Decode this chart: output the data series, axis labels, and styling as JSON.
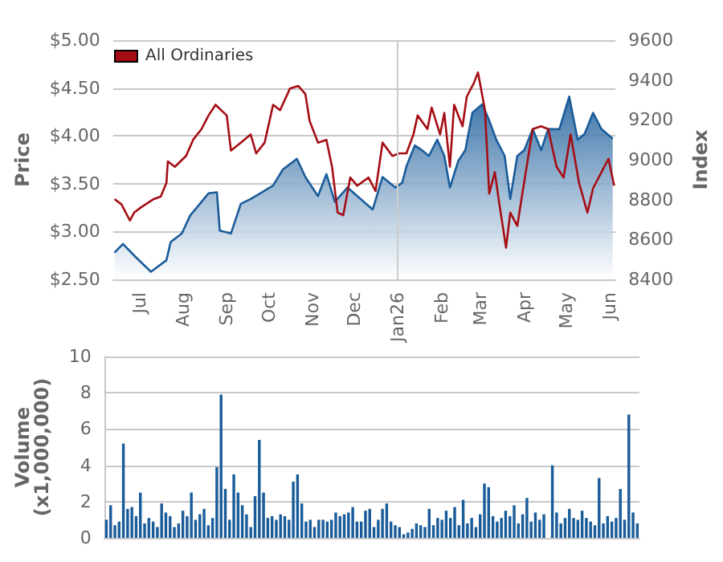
{
  "chart_data": [
    {
      "type": "area",
      "ylabel": "Price",
      "y2label": "Index",
      "legend": "top left",
      "grid": "y",
      "marker": "none",
      "xlim": [
        "2025-06-12",
        "2026-06-05"
      ],
      "xticks": [
        {
          "value": "2025-07-01",
          "label": "Jul"
        },
        {
          "value": "2025-08-01",
          "label": "Aug"
        },
        {
          "value": "2025-09-01",
          "label": "Sep"
        },
        {
          "value": "2025-10-01",
          "label": "Oct"
        },
        {
          "value": "2025-11-01",
          "label": "Nov"
        },
        {
          "value": "2025-12-01",
          "label": "Dec"
        },
        {
          "value": "2026-01-01",
          "label": "Jan26"
        },
        {
          "value": "2026-02-01",
          "label": "Feb"
        },
        {
          "value": "2026-03-01",
          "label": "Mar"
        },
        {
          "value": "2026-04-01",
          "label": "Apr"
        },
        {
          "value": "2026-05-01",
          "label": "May"
        },
        {
          "value": "2026-06-01",
          "label": "Jun"
        }
      ],
      "ylim": [
        2.5,
        5
      ],
      "yticks": [
        {
          "value": 2.5,
          "label": "$2.50"
        },
        {
          "value": 3,
          "label": "$3.00"
        },
        {
          "value": 3.5,
          "label": "$3.50"
        },
        {
          "value": 4,
          "label": "$4.00"
        },
        {
          "value": 4.5,
          "label": "$4.50"
        },
        {
          "value": 5,
          "label": "$5.00"
        }
      ],
      "y2lim": [
        8400,
        9600
      ],
      "y2ticks": [
        8400,
        8600,
        8800,
        9000,
        9200,
        9400,
        9600
      ],
      "ref_lines": [
        {
          "axis": "x",
          "value": "2026-01-01",
          "color": "#cccccc"
        }
      ],
      "series": [
        {
          "type": "area",
          "color": "#1a5c9a",
          "x": [
            "2025-06-13",
            "2025-06-19",
            "2025-06-29",
            "2025-07-09",
            "2025-07-20",
            "2025-07-23",
            "2025-07-31",
            "2025-08-06",
            "2025-08-14",
            "2025-08-19",
            "2025-08-25",
            "2025-08-27",
            "2025-09-04",
            "2025-09-11",
            "2025-09-18",
            "2025-09-25",
            "2025-10-04",
            "2025-10-11",
            "2025-10-21",
            "2025-10-27",
            "2025-11-05",
            "2025-11-11",
            "2025-11-17",
            "2025-11-26",
            "2025-12-03",
            "2025-12-14",
            "2025-12-21",
            "2025-12-30",
            "2026-01-04",
            "2026-01-07",
            "2026-01-13",
            "2026-01-18",
            "2026-01-23",
            "2026-01-29",
            "2026-02-03",
            "2026-02-07",
            "2026-02-13",
            "2026-02-18",
            "2026-02-23",
            "2026-03-02",
            "2026-03-07",
            "2026-03-12",
            "2026-03-18",
            "2026-03-22",
            "2026-03-27",
            "2026-04-01",
            "2026-04-07",
            "2026-04-13",
            "2026-04-18",
            "2026-04-26",
            "2026-05-03",
            "2026-05-09",
            "2026-05-14",
            "2026-05-20",
            "2026-05-26",
            "2026-06-03"
          ],
          "values": [
            2.78,
            2.87,
            2.72,
            2.58,
            2.7,
            2.89,
            2.98,
            3.17,
            3.31,
            3.4,
            3.41,
            3.01,
            2.98,
            3.29,
            3.34,
            3.4,
            3.48,
            3.65,
            3.76,
            3.57,
            3.37,
            3.6,
            3.31,
            3.46,
            3.37,
            3.23,
            3.57,
            3.46,
            3.51,
            3.68,
            3.9,
            3.85,
            3.79,
            3.96,
            3.79,
            3.46,
            3.74,
            3.85,
            4.24,
            4.33,
            4.16,
            3.96,
            3.79,
            3.34,
            3.79,
            3.85,
            4.07,
            3.85,
            4.07,
            4.07,
            4.41,
            3.96,
            4.02,
            4.24,
            4.07,
            3.97
          ]
        },
        {
          "type": "line",
          "name": "All Ordinaries",
          "axis": "y2",
          "color": "#a50d14",
          "x": [
            "2025-06-13",
            "2025-06-18",
            "2025-06-24",
            "2025-06-27",
            "2025-07-02",
            "2025-07-11",
            "2025-07-16",
            "2025-07-20",
            "2025-07-21",
            "2025-07-26",
            "2025-08-03",
            "2025-08-08",
            "2025-08-14",
            "2025-08-19",
            "2025-08-24",
            "2025-09-01",
            "2025-09-04",
            "2025-09-11",
            "2025-09-18",
            "2025-09-22",
            "2025-09-28",
            "2025-10-04",
            "2025-10-09",
            "2025-10-16",
            "2025-10-22",
            "2025-10-27",
            "2025-10-30",
            "2025-11-05",
            "2025-11-11",
            "2025-11-15",
            "2025-11-19",
            "2025-11-23",
            "2025-11-28",
            "2025-12-03",
            "2025-12-11",
            "2025-12-16",
            "2025-12-21",
            "2025-12-28",
            "2026-01-02",
            "2026-01-07",
            "2026-01-12",
            "2026-01-15",
            "2026-01-22",
            "2026-01-25",
            "2026-01-31",
            "2026-02-03",
            "2026-02-07",
            "2026-02-10",
            "2026-02-16",
            "2026-02-19",
            "2026-02-24",
            "2026-02-27",
            "2026-03-04",
            "2026-03-07",
            "2026-03-11",
            "2026-03-14",
            "2026-03-19",
            "2026-03-22",
            "2026-03-27",
            "2026-03-30",
            "2026-04-07",
            "2026-04-13",
            "2026-04-18",
            "2026-04-24",
            "2026-04-29",
            "2026-05-04",
            "2026-05-10",
            "2026-05-16",
            "2026-05-20",
            "2026-05-26",
            "2026-05-31",
            "2026-06-04"
          ],
          "values": [
            8803,
            8776,
            8695,
            8735,
            8762,
            8803,
            8816,
            8884,
            8992,
            8965,
            9019,
            9100,
            9154,
            9222,
            9276,
            9222,
            9046,
            9086,
            9127,
            9032,
            9086,
            9276,
            9249,
            9357,
            9370,
            9330,
            9195,
            9086,
            9100,
            8965,
            8735,
            8722,
            8911,
            8870,
            8911,
            8843,
            9086,
            9019,
            9032,
            9032,
            9127,
            9222,
            9154,
            9262,
            9127,
            9235,
            8965,
            9276,
            9168,
            9316,
            9384,
            9438,
            9249,
            8830,
            8938,
            8789,
            8559,
            8735,
            8668,
            8803,
            9154,
            9168,
            9154,
            8965,
            8911,
            9127,
            8884,
            8735,
            8857,
            8938,
            9005,
            8870
          ]
        }
      ]
    },
    {
      "type": "bar",
      "ylabel": "Volume\n(x1,000,000)",
      "grid": "y",
      "color": "#1a5c9a",
      "ylim": [
        0,
        10
      ],
      "yticks": [
        0,
        2,
        4,
        6,
        8,
        10
      ],
      "categories": [
        null,
        null,
        null,
        null,
        null,
        null,
        null,
        null,
        null,
        null,
        null,
        null,
        null,
        null,
        null,
        null,
        null,
        null,
        null,
        null,
        null,
        null,
        null,
        null,
        null,
        null,
        null,
        null,
        null,
        null,
        null,
        null,
        null,
        null,
        null,
        null,
        null,
        null,
        null,
        null,
        null,
        null,
        null,
        null,
        null,
        null,
        null,
        null,
        null,
        null,
        null,
        null,
        null,
        null,
        null,
        null,
        null,
        null,
        null,
        null,
        null,
        null,
        null,
        null,
        null,
        null,
        null,
        null,
        null,
        null,
        null,
        null,
        null,
        null,
        null,
        null,
        null,
        null,
        null,
        null,
        null,
        null,
        null,
        null,
        null,
        null,
        null,
        null,
        null,
        null,
        null,
        null,
        null,
        null,
        null,
        null,
        null,
        null,
        null,
        null,
        null,
        null,
        null,
        null,
        null,
        null,
        null,
        null,
        null,
        null,
        null,
        null,
        null,
        null,
        null,
        null,
        null,
        null,
        null,
        null,
        null,
        null,
        null,
        null,
        null,
        null
      ],
      "values": [
        1.0,
        1.8,
        0.7,
        0.9,
        5.2,
        1.6,
        1.7,
        1.2,
        2.5,
        0.8,
        1.1,
        0.9,
        0.6,
        1.9,
        1.4,
        1.2,
        0.6,
        0.8,
        1.5,
        1.2,
        2.5,
        1.0,
        1.3,
        1.6,
        0.7,
        1.1,
        3.9,
        7.9,
        2.7,
        1.0,
        3.5,
        2.5,
        1.8,
        1.3,
        0.6,
        2.3,
        5.4,
        2.5,
        1.1,
        1.2,
        1.0,
        1.3,
        1.2,
        1.0,
        3.1,
        3.5,
        1.9,
        0.9,
        1.0,
        0.6,
        1.0,
        1.0,
        0.9,
        1.0,
        1.4,
        1.2,
        1.3,
        1.4,
        1.7,
        0.9,
        0.9,
        1.5,
        1.6,
        0.6,
        1.0,
        1.6,
        1.9,
        0.9,
        0.7,
        0.6,
        0.2,
        0.3,
        0.5,
        0.8,
        0.7,
        0.6,
        1.6,
        0.7,
        1.1,
        1.0,
        1.5,
        1.1,
        1.7,
        0.7,
        2.1,
        0.8,
        1.1,
        0.6,
        1.3,
        3.0,
        2.8,
        1.2,
        0.9,
        1.1,
        1.5,
        1.2,
        1.8,
        0.8,
        1.3,
        2.2,
        0.9,
        1.4,
        1.0,
        1.3,
        null,
        4.0,
        1.4,
        0.8,
        1.1,
        1.6,
        1.1,
        1.0,
        1.5,
        1.1,
        0.9,
        0.7,
        3.3,
        0.8,
        1.2,
        0.9,
        1.1,
        2.7,
        1.0,
        6.8,
        1.4,
        0.8
      ]
    }
  ]
}
